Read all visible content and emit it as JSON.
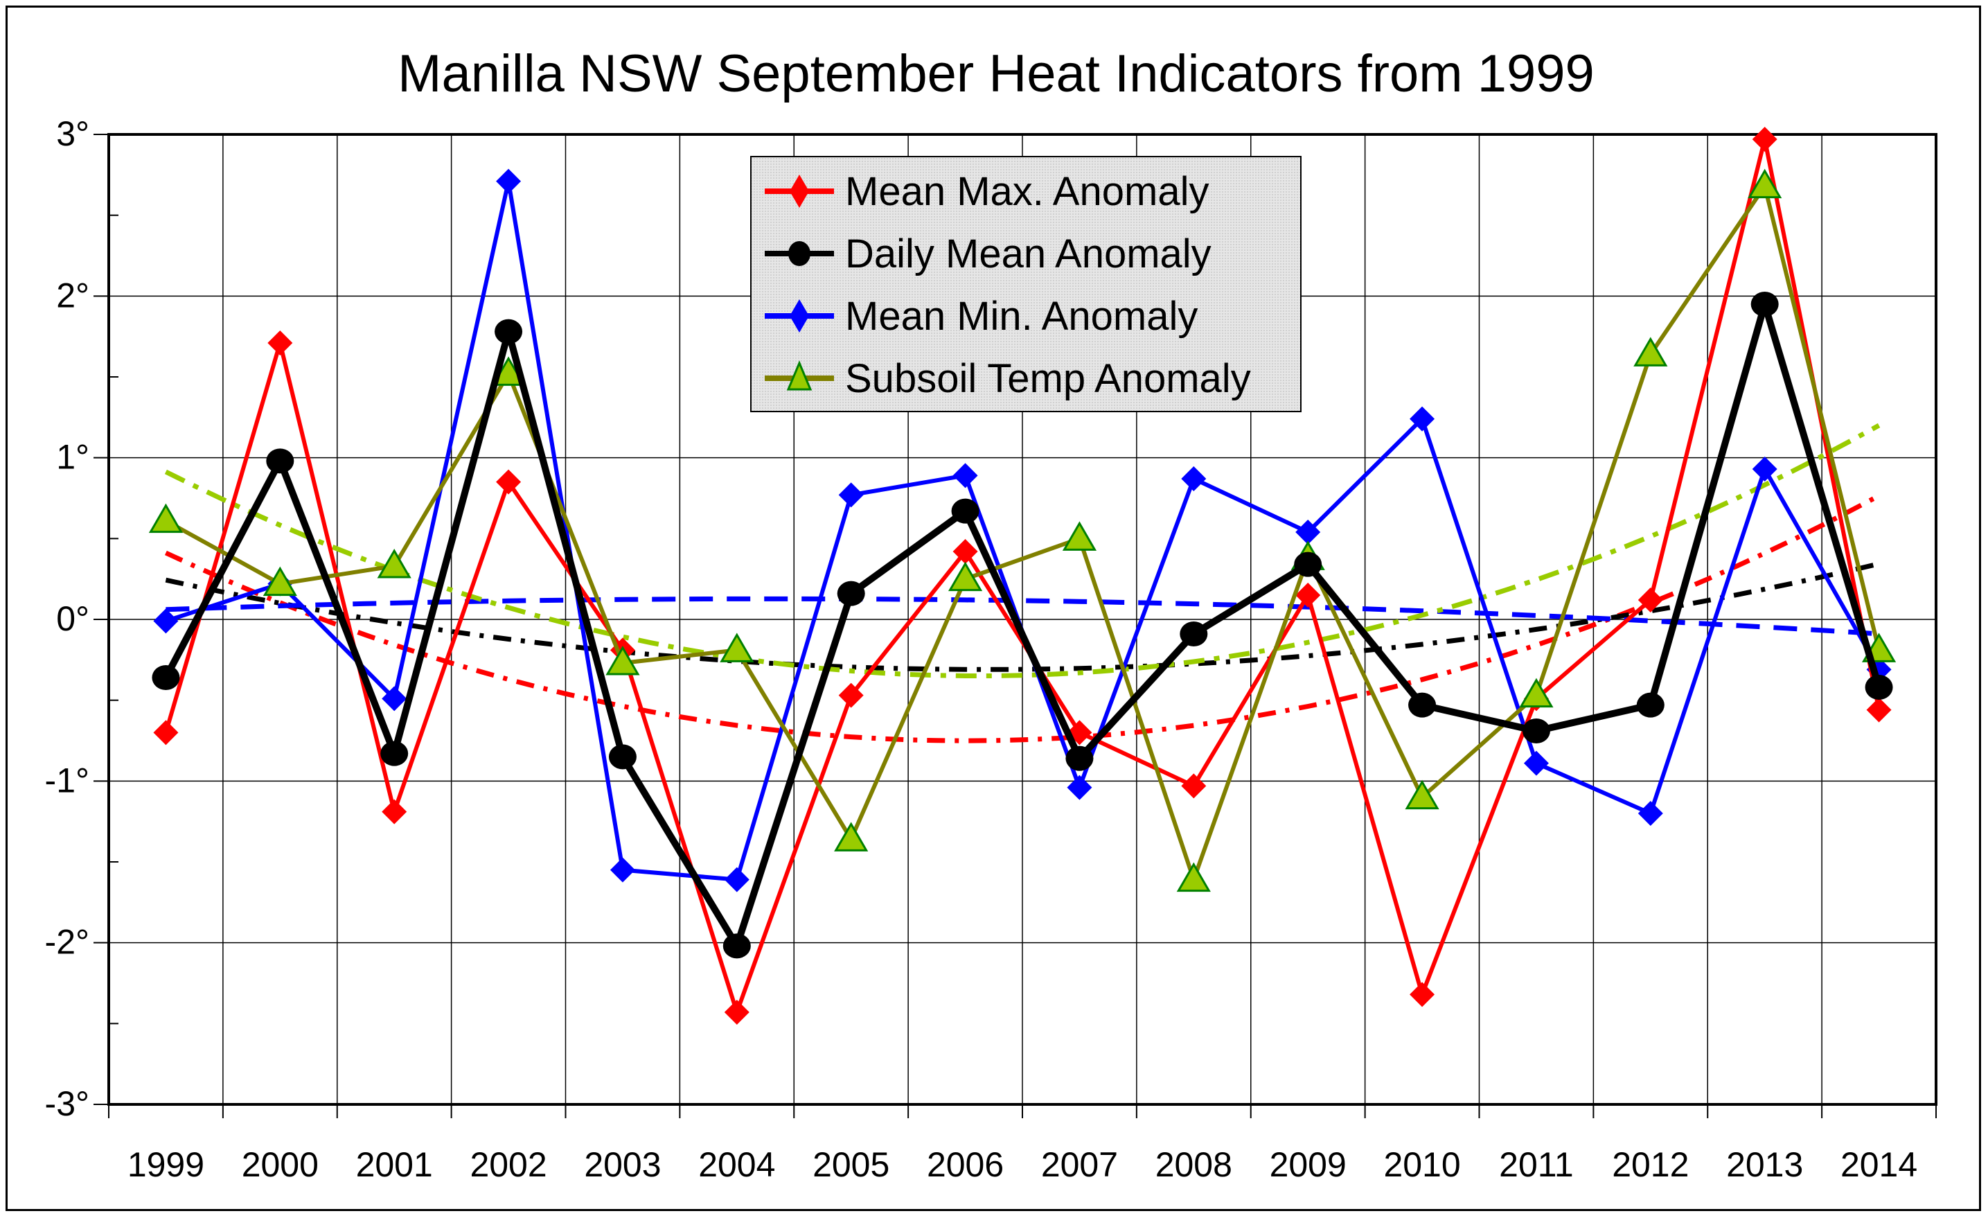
{
  "chart_data": {
    "type": "line",
    "title": "Manilla NSW September Heat Indicators from 1999",
    "xlabel": "",
    "ylabel": "",
    "categories": [
      "1999",
      "2000",
      "2001",
      "2002",
      "2003",
      "2004",
      "2005",
      "2006",
      "2007",
      "2008",
      "2009",
      "2010",
      "2011",
      "2012",
      "2013",
      "2014"
    ],
    "ylim": [
      -3,
      3
    ],
    "yticks": [
      {
        "value": 3,
        "label": "3°"
      },
      {
        "value": 2,
        "label": "2°"
      },
      {
        "value": 1,
        "label": "1°"
      },
      {
        "value": 0,
        "label": "0°"
      },
      {
        "value": -1,
        "label": "-1°"
      },
      {
        "value": -2,
        "label": "-2°"
      },
      {
        "value": -3,
        "label": "-3°"
      }
    ],
    "grid": true,
    "legend_position": "top-center",
    "trendlines": "polynomial order 2 (dashed) for each series",
    "series": [
      {
        "name": "Mean Max. Anomaly",
        "color": "#ff0000",
        "marker": "diamond",
        "trend_color": "#ff0000",
        "values": [
          -0.7,
          1.71,
          -1.19,
          0.85,
          -0.19,
          -2.43,
          -0.47,
          0.42,
          -0.7,
          -1.03,
          0.15,
          -2.32,
          -0.49,
          0.12,
          2.97,
          -0.56
        ]
      },
      {
        "name": "Daily Mean Anomaly",
        "color": "#000000",
        "marker": "circle",
        "trend_color": "#000000",
        "values": [
          -0.36,
          0.98,
          -0.83,
          1.78,
          -0.85,
          -2.02,
          0.16,
          0.67,
          -0.86,
          -0.09,
          0.34,
          -0.53,
          -0.69,
          -0.53,
          1.95,
          -0.42
        ]
      },
      {
        "name": "Mean Min. Anomaly",
        "color": "#0000ff",
        "marker": "diamond",
        "trend_color": "#0000ff",
        "values": [
          -0.01,
          0.22,
          -0.49,
          2.71,
          -1.55,
          -1.61,
          0.77,
          0.89,
          -1.04,
          0.87,
          0.54,
          1.24,
          -0.89,
          -1.2,
          0.93,
          -0.31
        ]
      },
      {
        "name": "Subsoil Temp Anomaly",
        "color": "#808000",
        "marker": "triangle",
        "marker_fill": "#99cc00",
        "marker_stroke": "#008000",
        "trend_color": "#99cc00",
        "values": [
          0.61,
          0.22,
          0.33,
          1.52,
          -0.27,
          -0.19,
          -1.36,
          0.25,
          0.5,
          -1.61,
          0.38,
          -1.1,
          -0.47,
          1.64,
          2.68,
          -0.19
        ]
      }
    ]
  }
}
